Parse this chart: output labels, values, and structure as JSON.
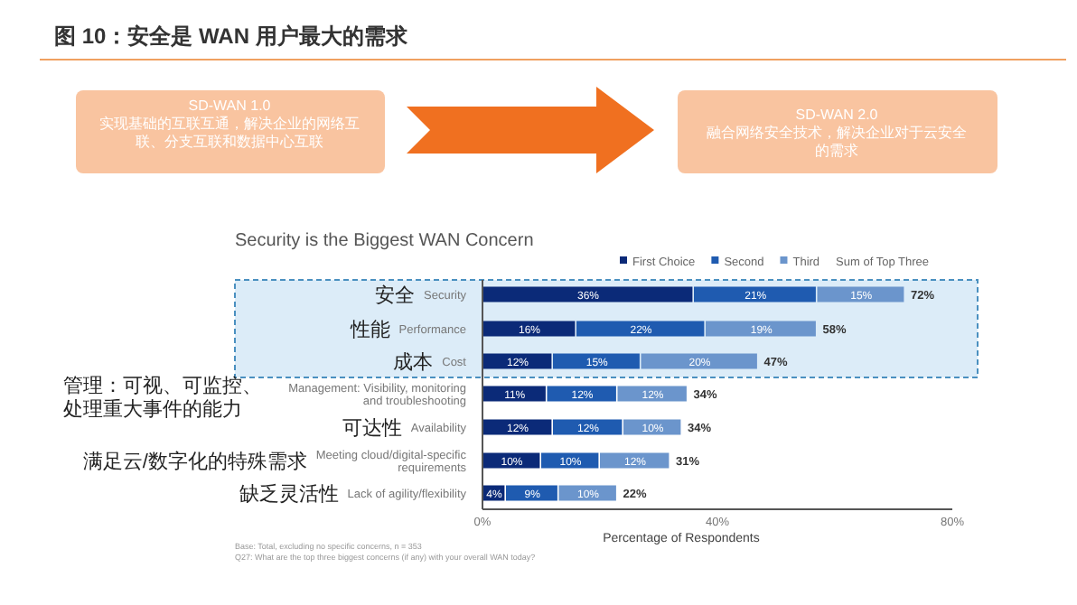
{
  "chart_data": {
    "type": "bar",
    "orientation": "horizontal",
    "stacked": true,
    "title": "图 10：安全是 WAN 用户最大的需求",
    "subtitle": "Security is the Biggest WAN Concern",
    "xlabel": "Percentage of Respondents",
    "categories": [
      "Security",
      "Performance",
      "Cost",
      "Management: Visibility, monitoring and troubleshooting",
      "Availability",
      "Meeting cloud/digital-specific requirements",
      "Lack of agility/flexibility"
    ],
    "series": [
      {
        "name": "First Choice",
        "color": "#0b2a78",
        "values": [
          36,
          16,
          12,
          11,
          12,
          10,
          4
        ],
        "value_labels": [
          "36%",
          "16%",
          "12%",
          "11%",
          "12%",
          "10%",
          "4%"
        ]
      },
      {
        "name": "Second",
        "color": "#1f5bb0",
        "values": [
          21,
          22,
          15,
          12,
          12,
          10,
          9
        ],
        "value_labels": [
          "21%",
          "22%",
          "15%",
          "12%",
          "12%",
          "10%",
          "9%"
        ]
      },
      {
        "name": "Third",
        "color": "#6b95cc",
        "values": [
          15,
          19,
          20,
          12,
          10,
          12,
          10
        ],
        "value_labels": [
          "15%",
          "19%",
          "20%",
          "12%",
          "10%",
          "12%",
          "10%"
        ]
      }
    ],
    "totals": [
      "72%",
      "58%",
      "47%",
      "34%",
      "34%",
      "31%",
      "22%"
    ],
    "xlim": [
      0,
      80
    ],
    "xticks": [
      {
        "value": 0,
        "label": "0%"
      },
      {
        "value": 40,
        "label": "40%"
      },
      {
        "value": 80,
        "label": "80%"
      }
    ],
    "legend": "top",
    "bands": [
      {
        "axis": "y",
        "from": "Security",
        "to": "Cost",
        "color": "#dcecf8"
      }
    ],
    "annotations": [
      "安全",
      "性能",
      "成本",
      "管理：可视、可监控、处理重大事件的能力",
      "可达性",
      "满足云/数字化的特殊需求",
      "缺乏灵活性",
      "Sum of Top Three",
      "SD-WAN 1.0",
      "实现基础的互联互通，解决企业的网络互联、分支互联和数据中心互联",
      "SD-WAN 2.0",
      "融合网络安全技术，解决企业对于云安全的需求",
      "Base: Total, excluding no specific concerns, n = 353",
      "Q27: What are the top three biggest concerns (if any) with your overall WAN today?"
    ]
  }
}
